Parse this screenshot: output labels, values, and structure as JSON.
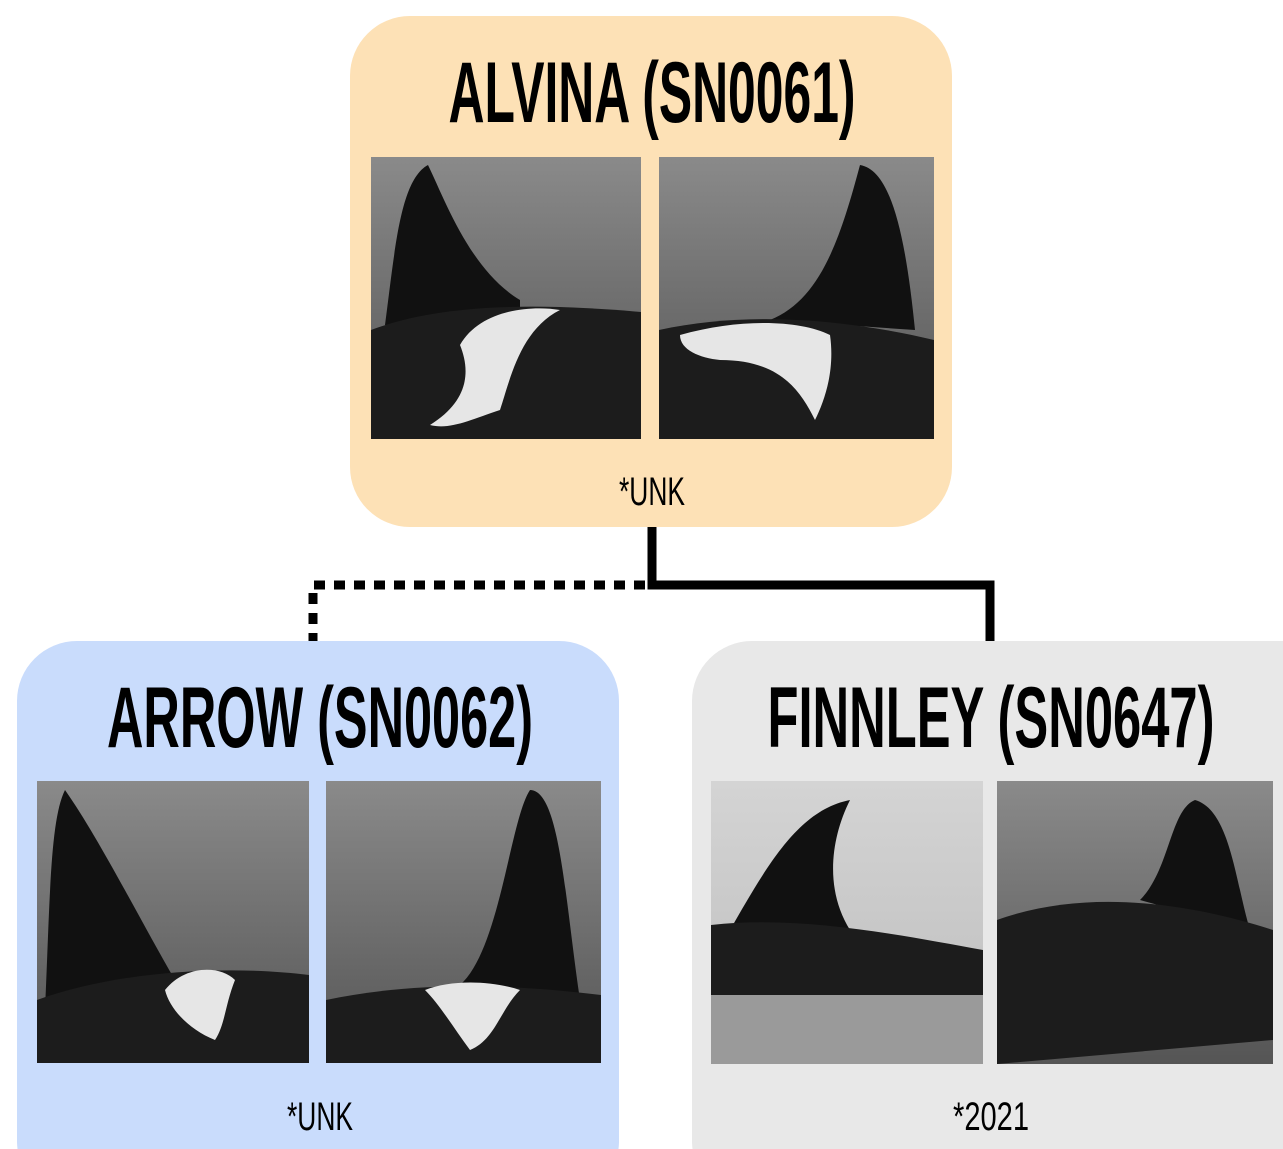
{
  "nodes": [
    {
      "label": "ALVINA (SN0061)",
      "birth": "*UNK"
    },
    {
      "label": "ARROW (SN0062)",
      "birth": "*UNK"
    },
    {
      "label": "FINNLEY (SN0647)",
      "birth": "*2021"
    }
  ]
}
